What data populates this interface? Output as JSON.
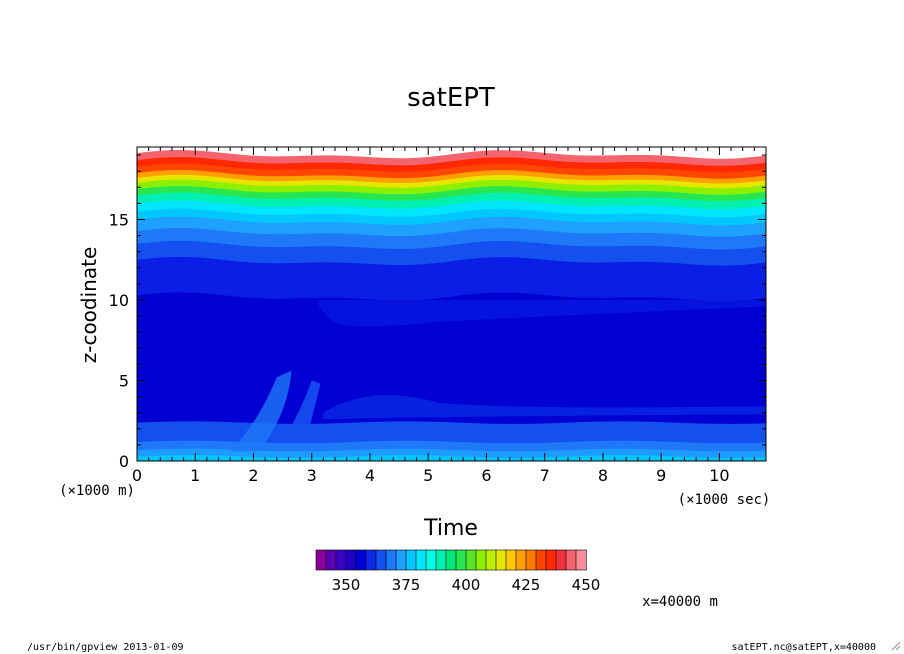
{
  "chart_data": {
    "type": "heatmap",
    "title": "satEPT",
    "xlabel": "Time",
    "ylabel": "z-coodinate",
    "x_unit_label": "(×1000 sec)",
    "y_unit_label": "(×1000 m)",
    "xlim": [
      0,
      10.8
    ],
    "ylim": [
      0,
      19.5
    ],
    "x_ticks": [
      "0",
      "1",
      "2",
      "3",
      "4",
      "5",
      "6",
      "7",
      "8",
      "9",
      "10"
    ],
    "y_ticks": [
      "0",
      "5",
      "10",
      "15"
    ],
    "colorbar": {
      "ticks": [
        "350",
        "375",
        "400",
        "425",
        "450"
      ],
      "colors": [
        "#8b009a",
        "#5a00b4",
        "#3c00c8",
        "#1e00c8",
        "#0000d8",
        "#0a28e6",
        "#1450f0",
        "#1e78f8",
        "#1ea0ff",
        "#00c8ff",
        "#00e6ff",
        "#00ffe6",
        "#00f0b4",
        "#00e678",
        "#28e650",
        "#5ae628",
        "#8cf000",
        "#bef000",
        "#e6e600",
        "#ffc800",
        "#ffa000",
        "#ff7800",
        "#ff4600",
        "#ff2800",
        "#f0323c",
        "#f5646e",
        "#fa8c96"
      ]
    },
    "bands": [
      {
        "z_bottom": 0.0,
        "z_top": 0.3,
        "color": "#00c8ff"
      },
      {
        "z_bottom": 0.3,
        "z_top": 0.7,
        "color": "#1e9bff"
      },
      {
        "z_bottom": 0.7,
        "z_top": 1.2,
        "color": "#1e78f8"
      },
      {
        "z_bottom": 1.2,
        "z_top": 2.4,
        "color": "#1450f0"
      },
      {
        "z_bottom": 2.4,
        "z_top": 10.2,
        "color": "#0000d2"
      },
      {
        "z_bottom": 10.2,
        "z_top": 12.4,
        "color": "#0a1ee6"
      },
      {
        "z_bottom": 12.4,
        "z_top": 13.4,
        "color": "#1450f0"
      },
      {
        "z_bottom": 13.4,
        "z_top": 14.2,
        "color": "#1e78f8"
      },
      {
        "z_bottom": 14.2,
        "z_top": 14.9,
        "color": "#1ea0ff"
      },
      {
        "z_bottom": 14.9,
        "z_top": 15.4,
        "color": "#00c8ff"
      },
      {
        "z_bottom": 15.4,
        "z_top": 15.9,
        "color": "#00e6ff"
      },
      {
        "z_bottom": 15.9,
        "z_top": 16.4,
        "color": "#00f0b4"
      },
      {
        "z_bottom": 16.4,
        "z_top": 16.8,
        "color": "#28e650"
      },
      {
        "z_bottom": 16.8,
        "z_top": 17.2,
        "color": "#8cf000"
      },
      {
        "z_bottom": 17.2,
        "z_top": 17.5,
        "color": "#e6e600"
      },
      {
        "z_bottom": 17.5,
        "z_top": 17.8,
        "color": "#ffa000"
      },
      {
        "z_bottom": 17.8,
        "z_top": 18.2,
        "color": "#ff4600"
      },
      {
        "z_bottom": 18.2,
        "z_top": 18.6,
        "color": "#ff2800"
      },
      {
        "z_bottom": 18.6,
        "z_top": 19.0,
        "color": "#f5646e"
      }
    ]
  },
  "annotations": {
    "x_position": "x=40000 m",
    "footer_left": "/usr/bin/gpview  2013-01-09",
    "footer_right": "satEPT.nc@satEPT,x=40000"
  }
}
